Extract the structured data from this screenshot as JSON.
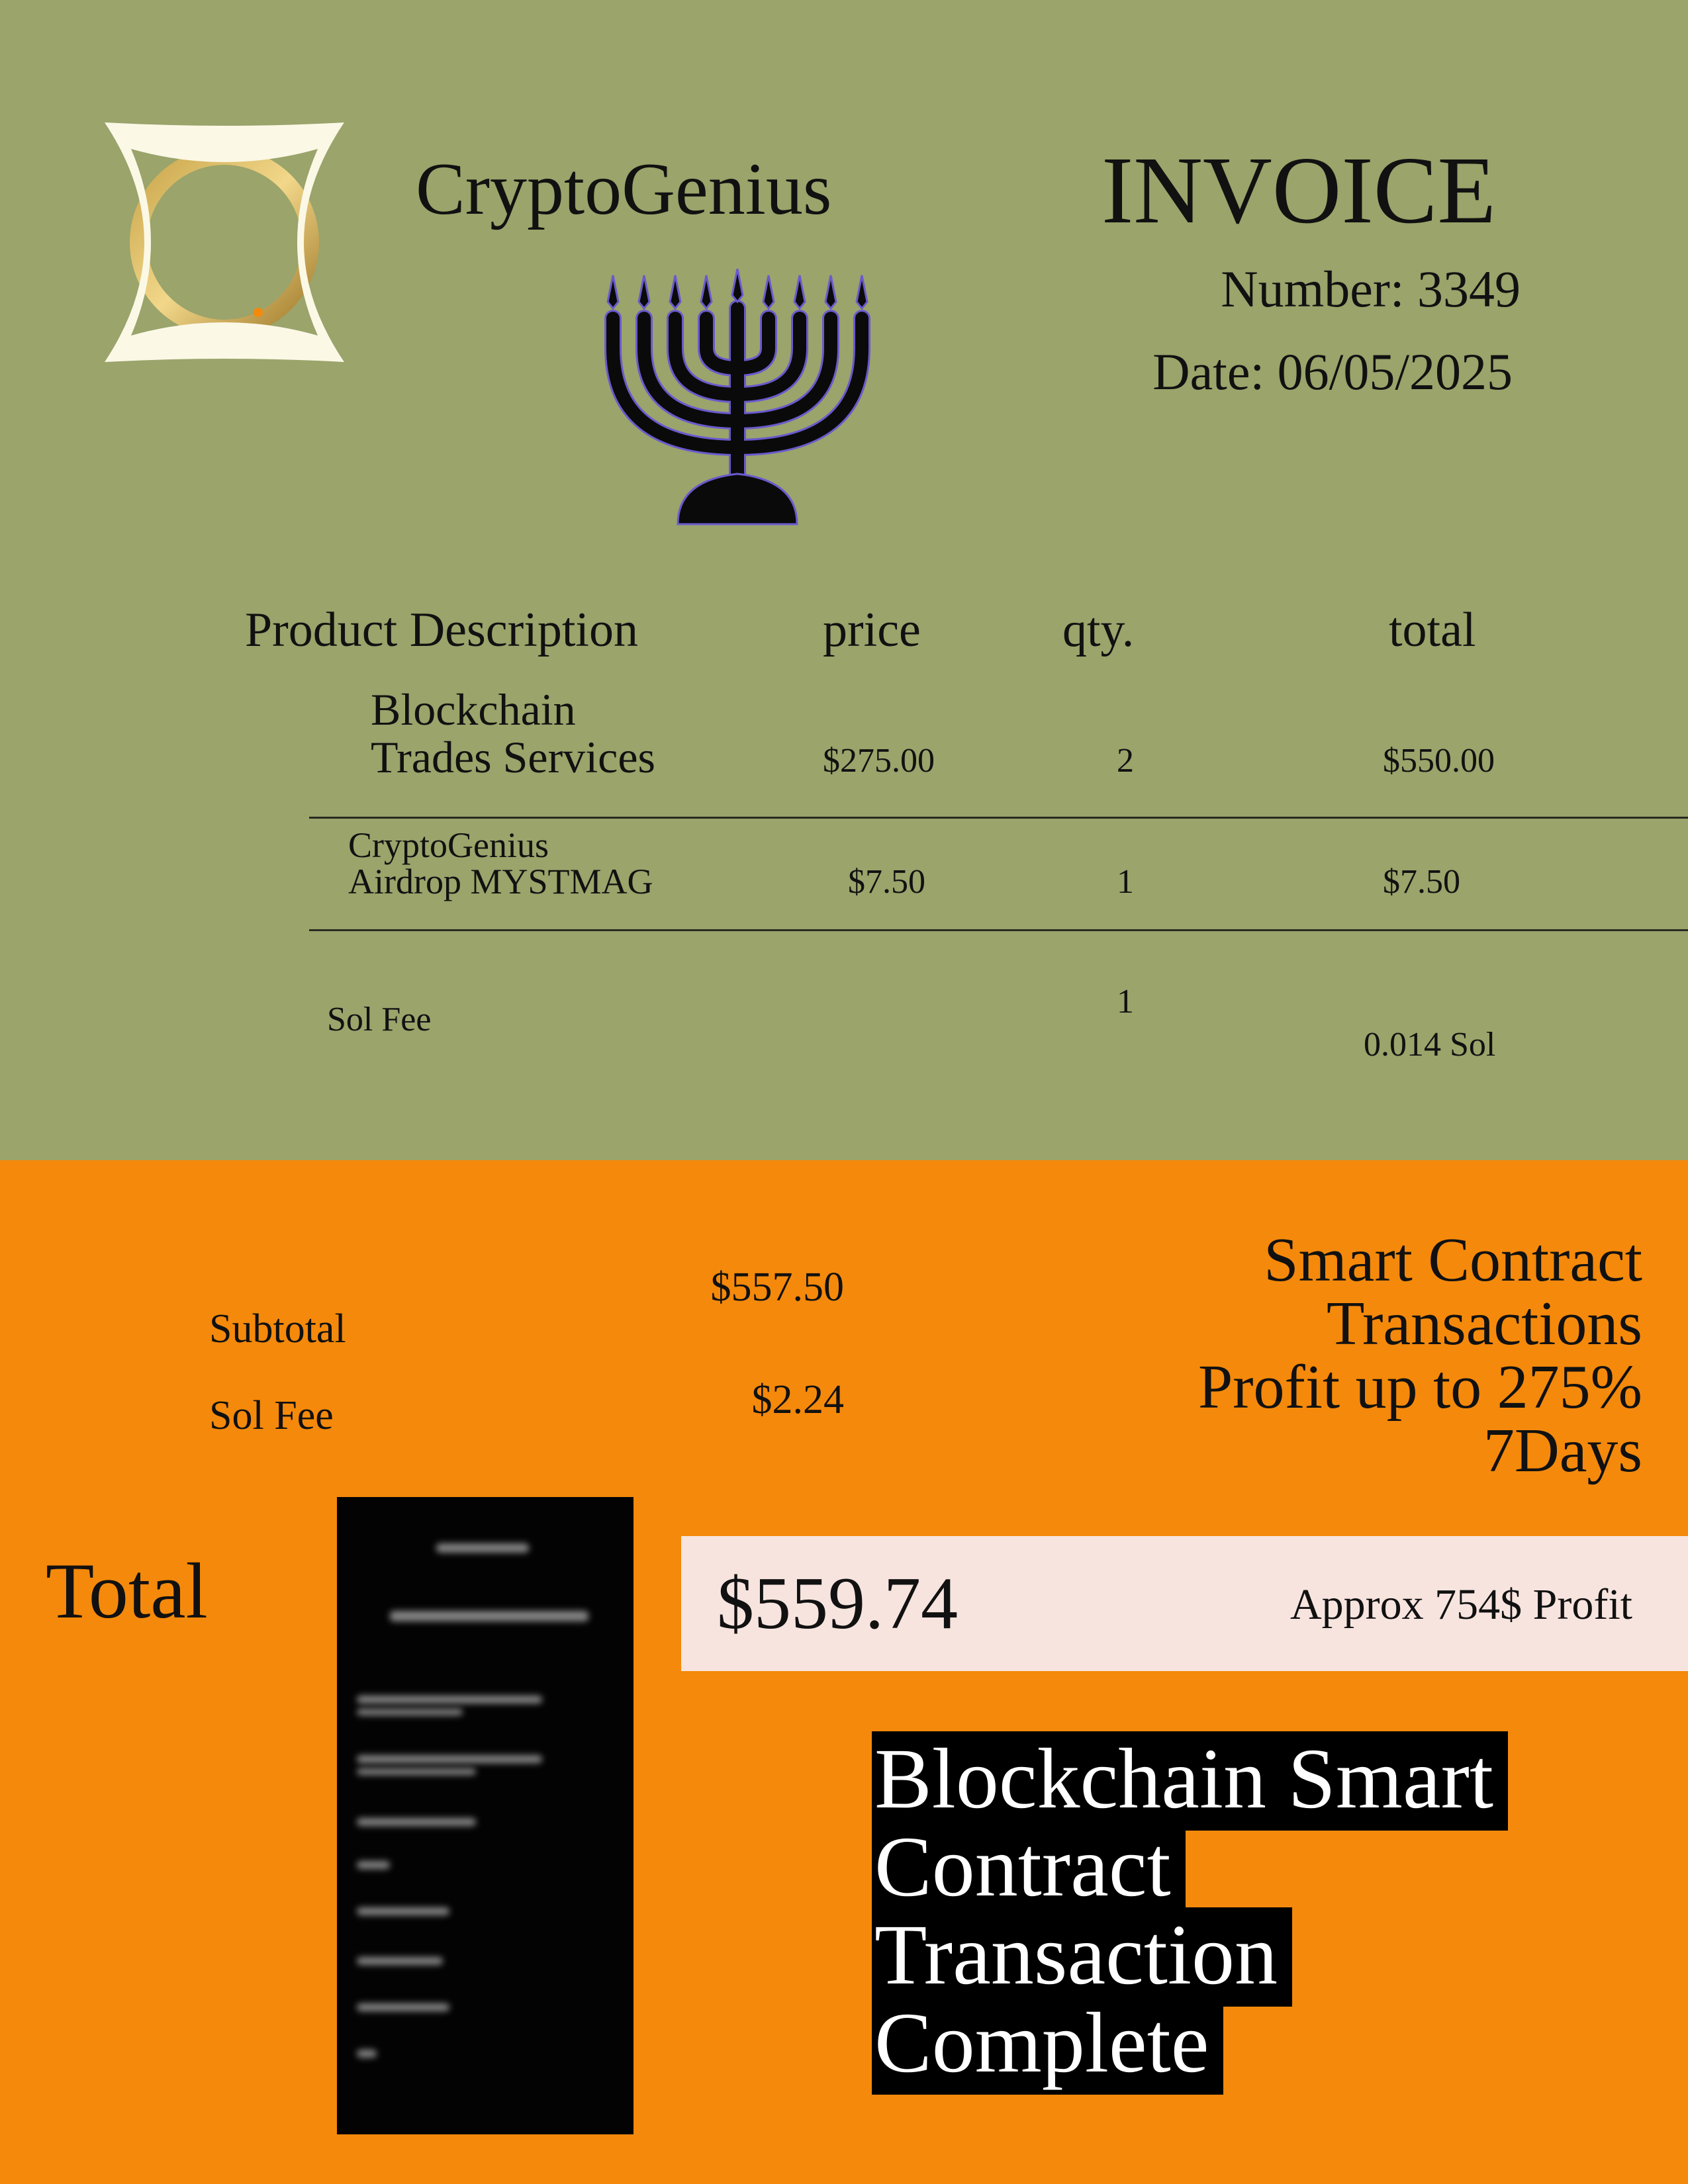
{
  "colors": {
    "top_bg": "#9AA46B",
    "bottom_bg": "#F5890B",
    "total_bar": "#F7E4DF",
    "highlight": "#000000"
  },
  "brand": {
    "name": "CryptoGenius",
    "logo_icon": "gold-coin-knot-logo",
    "decor_icon": "menorah-icon"
  },
  "invoice": {
    "title": "INVOICE",
    "number": "Number: 3349",
    "date": "Date: 06/05/2025"
  },
  "table": {
    "headers": [
      "Product Description",
      "price",
      "qty.",
      "total"
    ],
    "rows": [
      {
        "desc": [
          "Blockchain",
          "Trades Services"
        ],
        "price": "$275.00",
        "qty": "2",
        "total": "$550.00"
      },
      {
        "desc": [
          "CryptoGenius",
          "Airdrop MYSTMAG"
        ],
        "price": "$7.50",
        "qty": "1",
        "total": "$7.50"
      },
      {
        "desc": [
          "Sol Fee"
        ],
        "price": "",
        "qty": "1",
        "total": "0.014 Sol"
      }
    ]
  },
  "summary": {
    "subtotal_label": "Subtotal",
    "subtotal_value": "$557.50",
    "fee_label": "Sol Fee",
    "fee_value": "$2.24",
    "total_label": "Total",
    "total_value": "$559.74",
    "profit_note": "Approx 754$ Profit"
  },
  "promo": {
    "lines": [
      "Smart Contract",
      "Transactions",
      "Profit up to 275%",
      "7Days"
    ]
  },
  "banner": {
    "lines": [
      "Blockchain Smart",
      "Contract",
      "Transaction",
      "Complete"
    ]
  },
  "phone_screenshot": {
    "icon": "blurred-transaction-screenshot"
  }
}
